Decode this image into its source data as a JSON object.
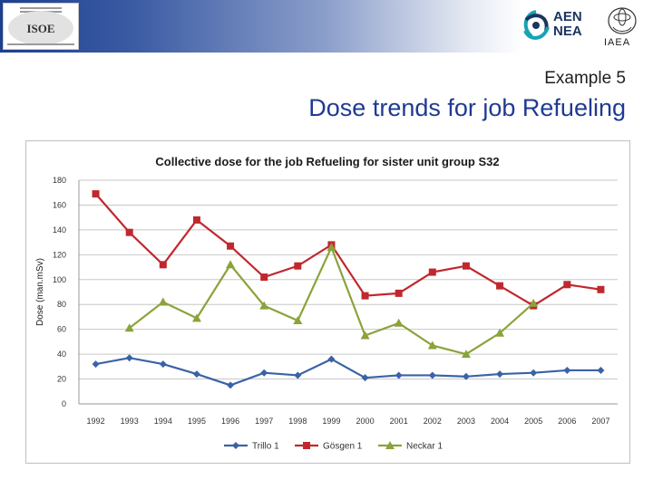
{
  "slide": {
    "subtitle": "Example 5",
    "title": "Dose trends for job Refueling"
  },
  "logos": {
    "isoe": "ISOE",
    "nea_line1": "AEN",
    "nea_line2": "NEA",
    "iaea": "IAEA"
  },
  "chart_data": {
    "type": "line",
    "title": "Collective dose for the job Refueling for sister unit group S32",
    "xlabel": "",
    "ylabel": "Dose (man.mSv)",
    "ylim": [
      0,
      180
    ],
    "yticks": [
      0,
      20,
      40,
      60,
      80,
      100,
      120,
      140,
      160,
      180
    ],
    "grid": true,
    "legend": "bottom",
    "categories": [
      "1992",
      "1993",
      "1994",
      "1995",
      "1996",
      "1997",
      "1998",
      "1999",
      "2000",
      "2001",
      "2002",
      "2003",
      "2004",
      "2005",
      "2006",
      "2007"
    ],
    "series": [
      {
        "name": "Trillo 1",
        "color": "#3a62a6",
        "marker": "diamond",
        "values": [
          32,
          37,
          32,
          24,
          15,
          25,
          23,
          36,
          21,
          23,
          23,
          22,
          24,
          25,
          27,
          27
        ]
      },
      {
        "name": "Gösgen 1",
        "color": "#c0282d",
        "marker": "square",
        "values": [
          169,
          138,
          112,
          148,
          127,
          102,
          111,
          128,
          87,
          89,
          106,
          111,
          95,
          79,
          96,
          92
        ]
      },
      {
        "name": "Neckar 1",
        "color": "#8aa33a",
        "marker": "triangle",
        "values": [
          null,
          61,
          82,
          69,
          112,
          79,
          67,
          126,
          55,
          65,
          47,
          40,
          57,
          81,
          null,
          null
        ]
      }
    ]
  }
}
